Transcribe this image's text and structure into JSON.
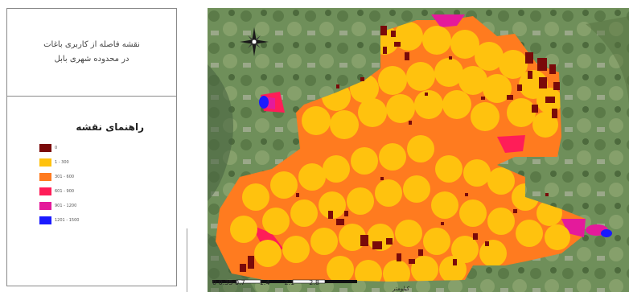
{
  "panel": {
    "title_line1": "نقشه فاصله از کاربری باغات",
    "title_line2": "در محدوده شهری بابل",
    "legend_title": "راهنمای نقشه",
    "legend": [
      {
        "label": "0",
        "color": "#7a0a0a"
      },
      {
        "label": "1 - 300",
        "color": "#ffc20e"
      },
      {
        "label": "301 - 600",
        "color": "#ff7b1f"
      },
      {
        "label": "601 - 900",
        "color": "#ff1d58"
      },
      {
        "label": "901 - 1200",
        "color": "#e41a9b"
      },
      {
        "label": "1201 - 1500",
        "color": "#1a1aff"
      }
    ]
  },
  "map": {
    "scale_labels": [
      "0 0.35 0.7",
      "1.4",
      "2.1",
      "2.8"
    ],
    "scale_unit": "کیلومتر",
    "colors": {
      "background_green": "#6f8f5a",
      "orange": "#ff7b1f",
      "yellow": "#ffc20e",
      "maroon": "#7a0a0a",
      "pink": "#ff1d58",
      "magenta": "#e41a9b",
      "blue": "#1a1aff"
    }
  }
}
